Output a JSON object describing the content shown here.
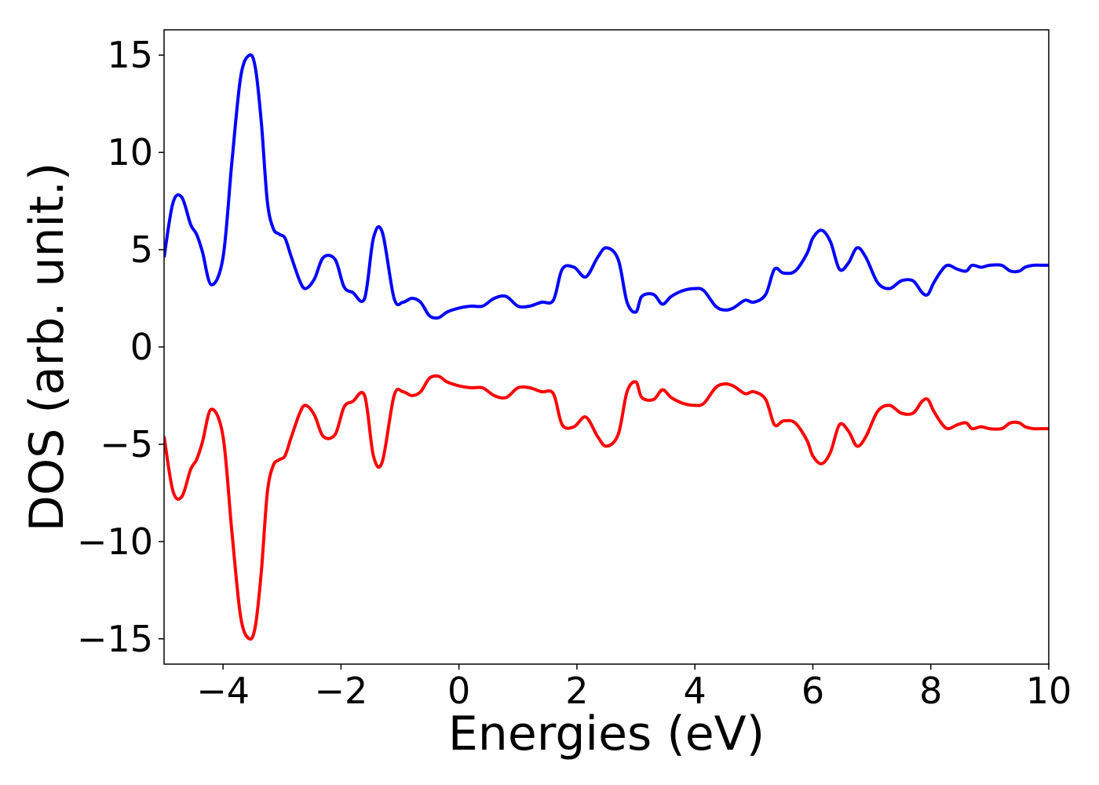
{
  "chart_data": {
    "type": "line",
    "title": "",
    "xlabel": "Energies (eV)",
    "ylabel": "DOS (arb. unit.)",
    "xlim": [
      -5,
      10
    ],
    "ylim": [
      -16.3,
      16.3
    ],
    "xticks": [
      -4,
      -2,
      0,
      2,
      4,
      6,
      8,
      10
    ],
    "xtick_labels": [
      "−4",
      "−2",
      "0",
      "2",
      "4",
      "6",
      "8",
      "10"
    ],
    "yticks": [
      15,
      10,
      5,
      0,
      -5,
      -10,
      -15
    ],
    "ytick_labels": [
      "15",
      "10",
      "5",
      "0",
      "−5",
      "−10",
      "−15"
    ],
    "grid": false,
    "legend": "none",
    "series": [
      {
        "color": "#0000ff",
        "x": [
          -5.0,
          -4.85,
          -4.7,
          -4.55,
          -4.45,
          -4.35,
          -4.2,
          -4.0,
          -3.85,
          -3.7,
          -3.55,
          -3.45,
          -3.35,
          -3.25,
          -3.15,
          -3.05,
          -2.95,
          -2.85,
          -2.7,
          -2.6,
          -2.45,
          -2.3,
          -2.1,
          -1.95,
          -1.8,
          -1.6,
          -1.45,
          -1.3,
          -1.1,
          -0.95,
          -0.8,
          -0.65,
          -0.5,
          -0.35,
          -0.2,
          0.0,
          0.2,
          0.4,
          0.6,
          0.8,
          1.0,
          1.2,
          1.4,
          1.6,
          1.75,
          1.95,
          2.15,
          2.35,
          2.5,
          2.7,
          2.85,
          3.0,
          3.1,
          3.3,
          3.45,
          3.6,
          3.8,
          4.0,
          4.15,
          4.35,
          4.5,
          4.65,
          4.85,
          5.0,
          5.2,
          5.35,
          5.5,
          5.7,
          5.9,
          6.0,
          6.15,
          6.3,
          6.45,
          6.6,
          6.75,
          6.9,
          7.1,
          7.3,
          7.5,
          7.7,
          7.85,
          7.95,
          8.05,
          8.2,
          8.3,
          8.45,
          8.6,
          8.7,
          8.85,
          9.0,
          9.2,
          9.35,
          9.5,
          9.6,
          9.75,
          9.9,
          10.0
        ],
        "y": [
          4.6,
          7.4,
          7.7,
          6.3,
          5.8,
          4.9,
          3.2,
          4.6,
          9.5,
          13.9,
          15.0,
          14.3,
          11.5,
          7.5,
          6.1,
          5.8,
          5.6,
          4.7,
          3.4,
          3.0,
          3.5,
          4.6,
          4.5,
          3.1,
          2.8,
          2.5,
          5.6,
          5.9,
          2.5,
          2.3,
          2.5,
          2.3,
          1.6,
          1.5,
          1.8,
          2.0,
          2.1,
          2.1,
          2.5,
          2.6,
          2.1,
          2.1,
          2.3,
          2.4,
          4.0,
          4.1,
          3.6,
          4.6,
          5.1,
          4.5,
          2.3,
          1.8,
          2.6,
          2.7,
          2.2,
          2.6,
          2.9,
          3.0,
          2.9,
          2.1,
          1.9,
          2.0,
          2.4,
          2.3,
          2.7,
          4.0,
          3.8,
          3.9,
          4.8,
          5.6,
          6.0,
          5.4,
          4.0,
          4.3,
          5.1,
          4.6,
          3.3,
          3.0,
          3.4,
          3.4,
          2.8,
          2.7,
          3.3,
          4.0,
          4.2,
          4.0,
          3.9,
          4.2,
          4.1,
          4.2,
          4.2,
          3.9,
          3.9,
          4.1,
          4.2,
          4.2,
          4.2
        ]
      },
      {
        "color": "#ff0000",
        "x": [
          -5.0,
          -4.85,
          -4.7,
          -4.55,
          -4.45,
          -4.35,
          -4.2,
          -4.0,
          -3.85,
          -3.7,
          -3.55,
          -3.45,
          -3.35,
          -3.25,
          -3.15,
          -3.05,
          -2.95,
          -2.85,
          -2.7,
          -2.6,
          -2.45,
          -2.3,
          -2.1,
          -1.95,
          -1.8,
          -1.6,
          -1.45,
          -1.3,
          -1.1,
          -0.95,
          -0.8,
          -0.65,
          -0.5,
          -0.35,
          -0.2,
          0.0,
          0.2,
          0.4,
          0.6,
          0.8,
          1.0,
          1.2,
          1.4,
          1.6,
          1.75,
          1.95,
          2.15,
          2.35,
          2.5,
          2.7,
          2.85,
          3.0,
          3.1,
          3.3,
          3.45,
          3.6,
          3.8,
          4.0,
          4.15,
          4.35,
          4.5,
          4.65,
          4.85,
          5.0,
          5.2,
          5.35,
          5.5,
          5.7,
          5.9,
          6.0,
          6.15,
          6.3,
          6.45,
          6.6,
          6.75,
          6.9,
          7.1,
          7.3,
          7.5,
          7.7,
          7.85,
          7.95,
          8.05,
          8.2,
          8.3,
          8.45,
          8.6,
          8.7,
          8.85,
          9.0,
          9.2,
          9.35,
          9.5,
          9.6,
          9.75,
          9.9,
          10.0
        ],
        "y": [
          -4.6,
          -7.4,
          -7.7,
          -6.3,
          -5.8,
          -4.9,
          -3.2,
          -4.6,
          -9.5,
          -13.9,
          -15.0,
          -14.3,
          -11.5,
          -7.5,
          -6.1,
          -5.8,
          -5.6,
          -4.7,
          -3.4,
          -3.0,
          -3.5,
          -4.6,
          -4.5,
          -3.1,
          -2.8,
          -2.5,
          -5.6,
          -5.9,
          -2.5,
          -2.3,
          -2.5,
          -2.3,
          -1.6,
          -1.5,
          -1.8,
          -2.0,
          -2.1,
          -2.1,
          -2.5,
          -2.6,
          -2.1,
          -2.1,
          -2.3,
          -2.4,
          -4.0,
          -4.1,
          -3.6,
          -4.6,
          -5.1,
          -4.5,
          -2.3,
          -1.8,
          -2.6,
          -2.7,
          -2.2,
          -2.6,
          -2.9,
          -3.0,
          -2.9,
          -2.1,
          -1.9,
          -2.0,
          -2.4,
          -2.3,
          -2.7,
          -4.0,
          -3.8,
          -3.9,
          -4.8,
          -5.6,
          -6.0,
          -5.4,
          -4.0,
          -4.3,
          -5.1,
          -4.6,
          -3.3,
          -3.0,
          -3.4,
          -3.4,
          -2.8,
          -2.7,
          -3.3,
          -4.0,
          -4.2,
          -4.0,
          -3.9,
          -4.2,
          -4.1,
          -4.2,
          -4.2,
          -3.9,
          -3.9,
          -4.1,
          -4.2,
          -4.2,
          -4.2
        ]
      }
    ]
  }
}
